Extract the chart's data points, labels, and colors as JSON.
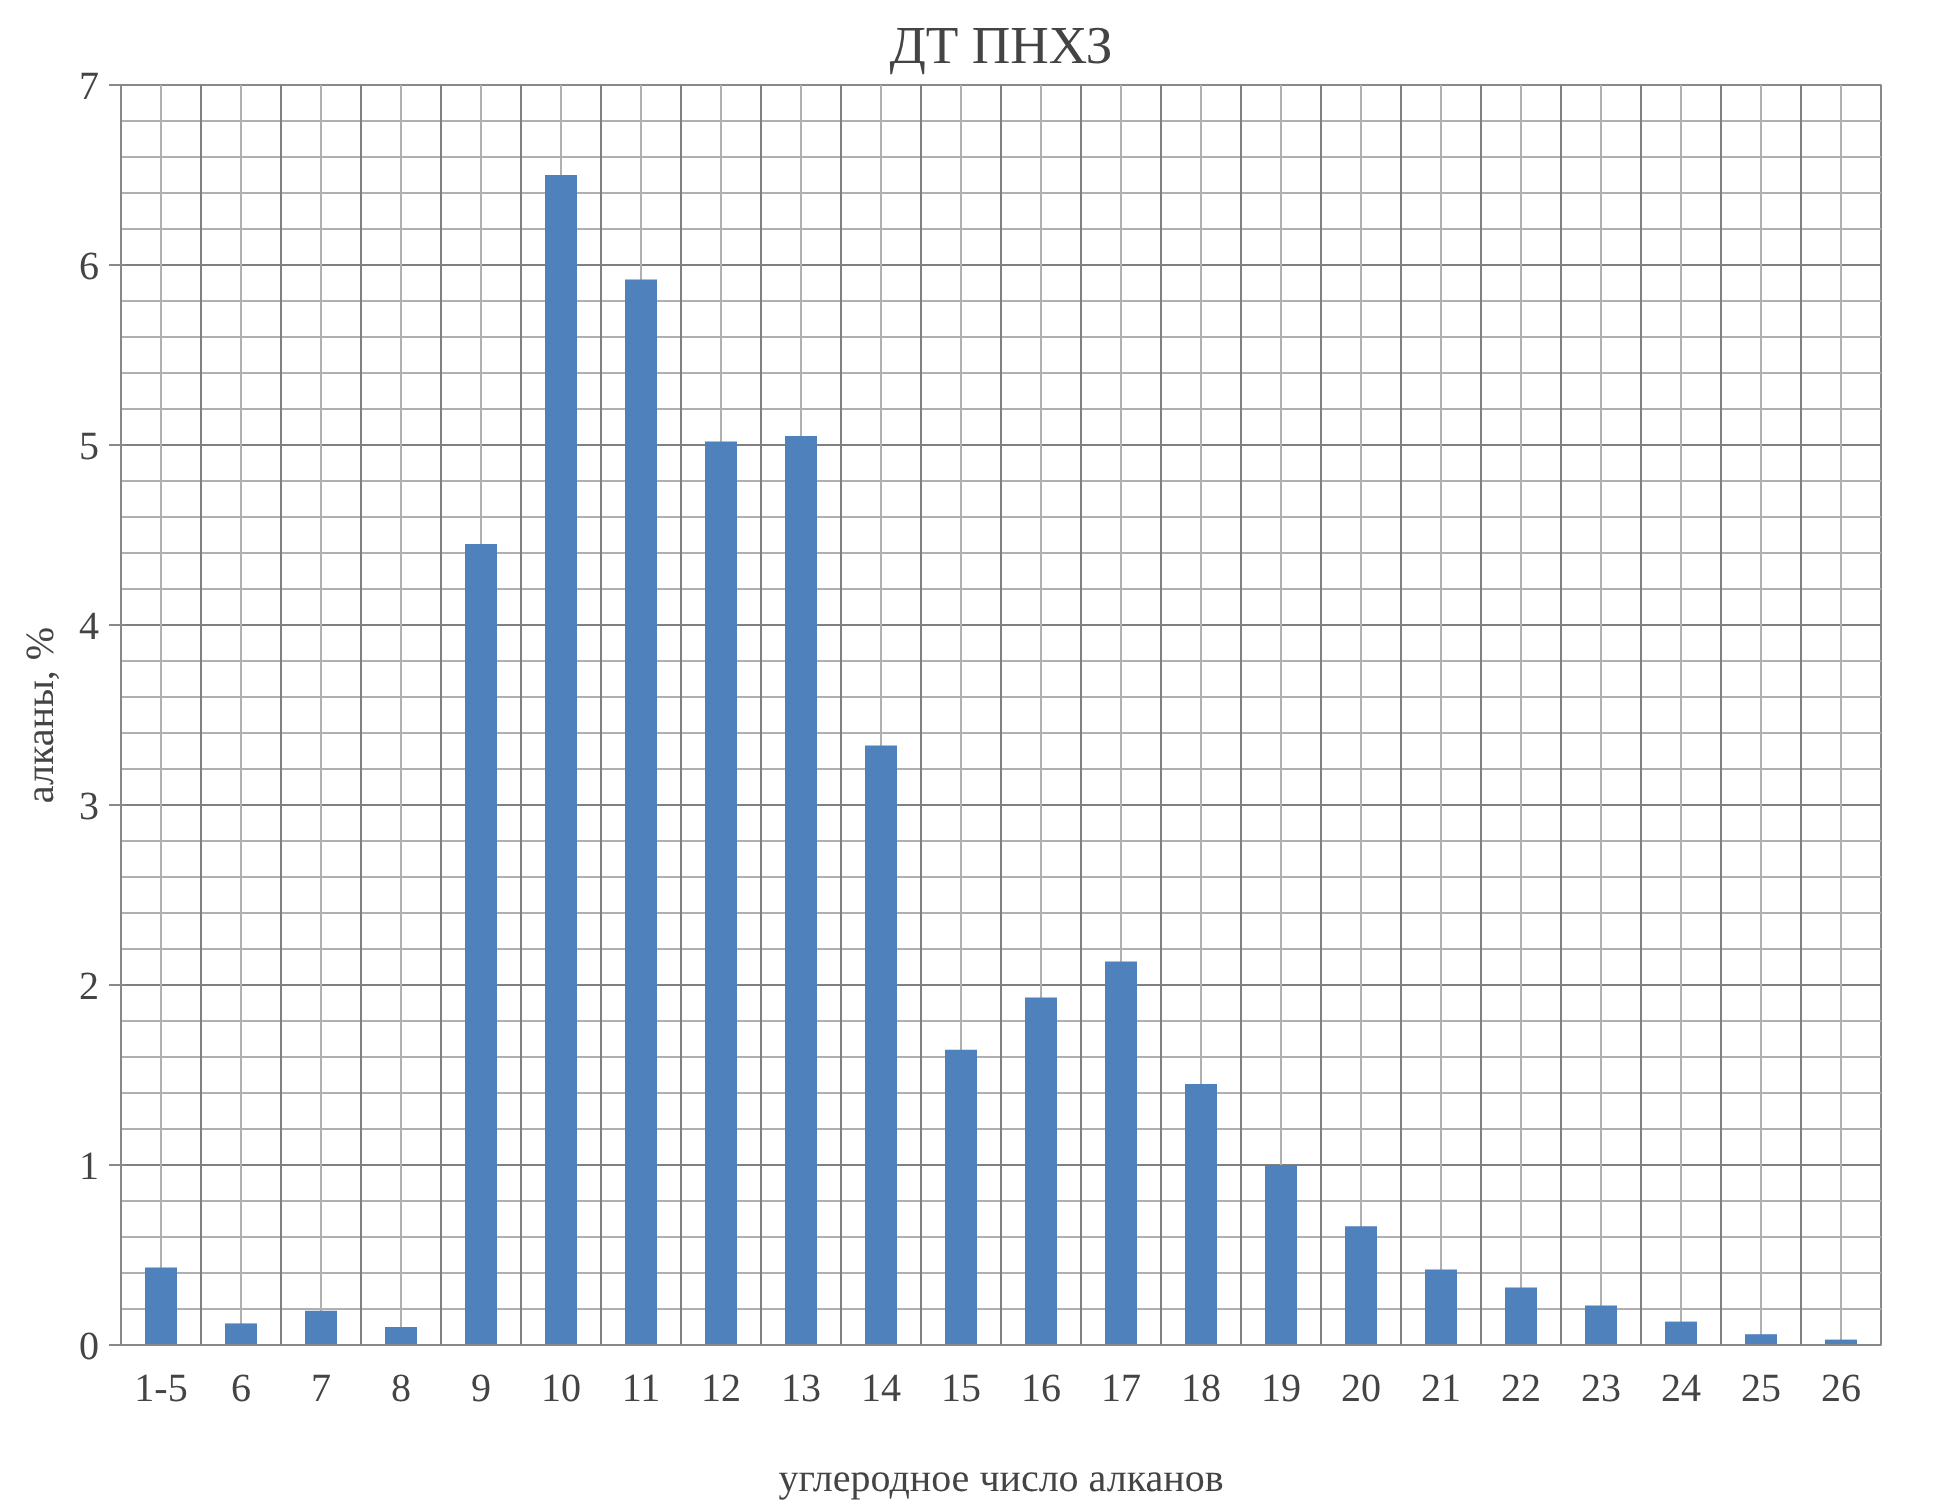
{
  "chart_data": {
    "type": "bar",
    "title": "ДТ ПНХЗ",
    "xlabel": "углеродное число алканов",
    "ylabel": "алканы, %",
    "categories": [
      "1-5",
      "6",
      "7",
      "8",
      "9",
      "10",
      "11",
      "12",
      "13",
      "14",
      "15",
      "16",
      "17",
      "18",
      "19",
      "20",
      "21",
      "22",
      "23",
      "24",
      "25",
      "26"
    ],
    "values": [
      0.43,
      0.12,
      0.19,
      0.1,
      4.45,
      6.5,
      5.92,
      5.02,
      5.05,
      3.33,
      1.64,
      1.93,
      2.13,
      1.45,
      1.0,
      0.66,
      0.42,
      0.32,
      0.22,
      0.13,
      0.06,
      0.03
    ],
    "color": "#4f81bd",
    "ylim": [
      0,
      7
    ],
    "yticks": [
      0,
      1,
      2,
      3,
      4,
      5,
      6,
      7
    ],
    "grid": true
  }
}
